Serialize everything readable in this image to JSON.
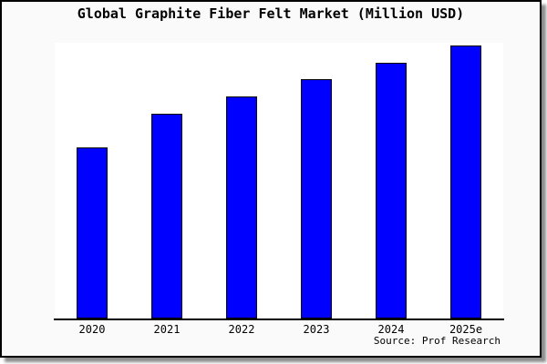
{
  "title": "Global Graphite Fiber Felt Market (Million USD)",
  "source_credit": "Source: Prof Research",
  "colors": {
    "bar_fill": "#0000FF",
    "bar_border": "#000000",
    "card_background": "#FAFAFA",
    "plot_background": "#FFFFFF",
    "axis": "#000000",
    "text": "#000000"
  },
  "chart_data": {
    "type": "bar",
    "title": "Global Graphite Fiber Felt Market (Million USD)",
    "categories": [
      "2020",
      "2021",
      "2022",
      "2023",
      "2024",
      "2025e"
    ],
    "values": [
      62.7,
      75.0,
      81.3,
      87.7,
      93.7,
      100.0
    ],
    "value_note": "y-axis has no tick labels; values are relative units estimated from bar heights with 2025e = 100",
    "xlabel": "",
    "ylabel": "",
    "ylim": [
      0,
      101
    ],
    "grid": false,
    "legend": false,
    "data_labels": false,
    "source": "Source: Prof Research"
  }
}
